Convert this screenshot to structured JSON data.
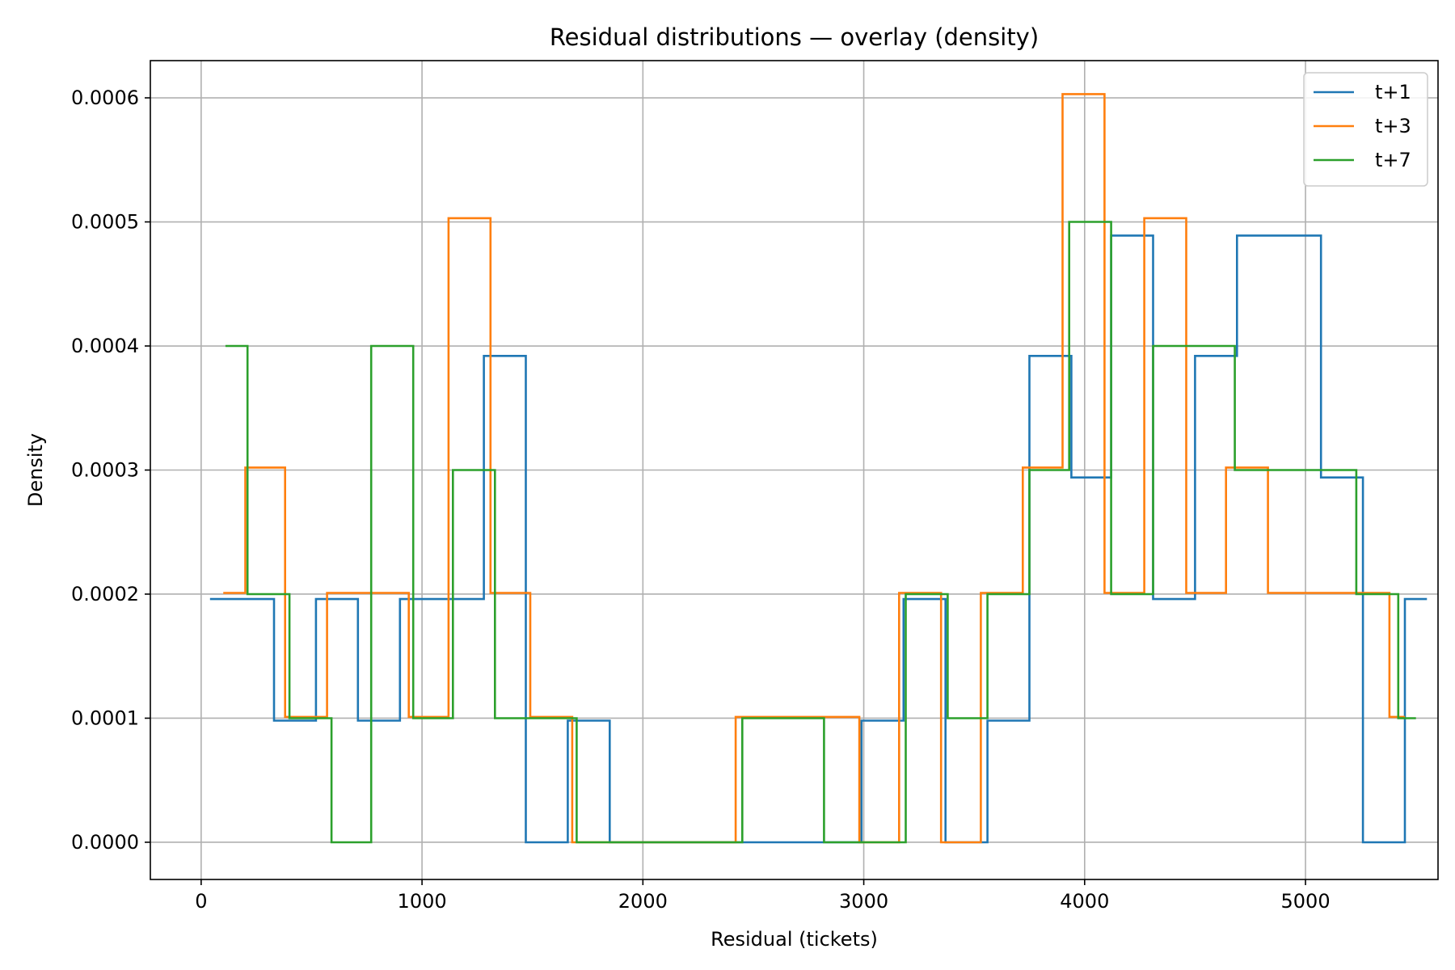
{
  "chart_data": {
    "type": "step-histogram",
    "title": "Residual distributions — overlay (density)",
    "xlabel": "Residual (tickets)",
    "ylabel": "Density",
    "xlim": [
      -230,
      5600
    ],
    "ylim": [
      -3e-05,
      0.00063
    ],
    "x_ticks": [
      0,
      1000,
      2000,
      3000,
      4000,
      5000
    ],
    "x_tick_labels": [
      "0",
      "1000",
      "2000",
      "3000",
      "4000",
      "5000"
    ],
    "y_ticks": [
      0,
      0.0001,
      0.0002,
      0.0003,
      0.0004,
      0.0005,
      0.0006
    ],
    "y_tick_labels": [
      "0.0000",
      "0.0001",
      "0.0002",
      "0.0003",
      "0.0004",
      "0.0005",
      "0.0006"
    ],
    "grid": true,
    "legend_position": "top-right",
    "series": [
      {
        "name": "t+1",
        "color": "#1f77b4",
        "edges": [
          40,
          330,
          520,
          710,
          900,
          1090,
          1280,
          1470,
          1660,
          1850,
          2040,
          2230,
          2420,
          2610,
          2800,
          2990,
          3180,
          3370,
          3560,
          3750,
          3940,
          4120,
          4310,
          4500,
          4690,
          4880,
          5070,
          5260,
          5450,
          5550
        ],
        "values": [
          0.000196,
          9.8e-05,
          0.000196,
          9.8e-05,
          0.000196,
          0.000196,
          0.000392,
          0,
          9.8e-05,
          0,
          0,
          0,
          0,
          0,
          0,
          9.8e-05,
          0.000196,
          0,
          9.8e-05,
          0.000392,
          0.000294,
          0.000489,
          0.000196,
          0.000392,
          0.000489,
          0.000489,
          0.000294,
          0,
          0.000196
        ]
      },
      {
        "name": "t+3",
        "color": "#ff7f0e",
        "edges": [
          100,
          200,
          380,
          570,
          750,
          940,
          1120,
          1310,
          1490,
          1680,
          1870,
          2050,
          2240,
          2420,
          2610,
          2790,
          2980,
          3160,
          3350,
          3530,
          3720,
          3900,
          4090,
          4270,
          4460,
          4640,
          4830,
          5010,
          5200,
          5380,
          5450
        ],
        "values": [
          0.000201,
          0.000302,
          0.000101,
          0.000201,
          0.000201,
          0.000101,
          0.000503,
          0.000201,
          0.000101,
          0,
          0,
          0,
          0,
          0.000101,
          0.000101,
          0.000101,
          0,
          0.000201,
          0,
          0.000201,
          0.000302,
          0.000603,
          0.000201,
          0.000503,
          0.000201,
          0.000302,
          0.000201,
          0.000201,
          0.000201,
          0.000101
        ]
      },
      {
        "name": "t+7",
        "color": "#2ca02c",
        "edges": [
          110,
          210,
          400,
          590,
          770,
          960,
          1140,
          1330,
          1520,
          1700,
          1890,
          2070,
          2260,
          2450,
          2630,
          2820,
          3000,
          3190,
          3380,
          3560,
          3750,
          3930,
          4120,
          4310,
          4490,
          4680,
          4860,
          5050,
          5230,
          5420,
          5500
        ],
        "values": [
          0.0004,
          0.0002,
          0.0001,
          0,
          0.0004,
          0.0001,
          0.0003,
          0.0001,
          0.0001,
          0,
          0,
          0,
          0,
          0.0001,
          0.0001,
          0,
          0,
          0.0002,
          0.0001,
          0.0002,
          0.0003,
          0.0005,
          0.0002,
          0.0004,
          0.0004,
          0.0003,
          0.0003,
          0.0003,
          0.0002,
          0.0001
        ]
      }
    ]
  }
}
